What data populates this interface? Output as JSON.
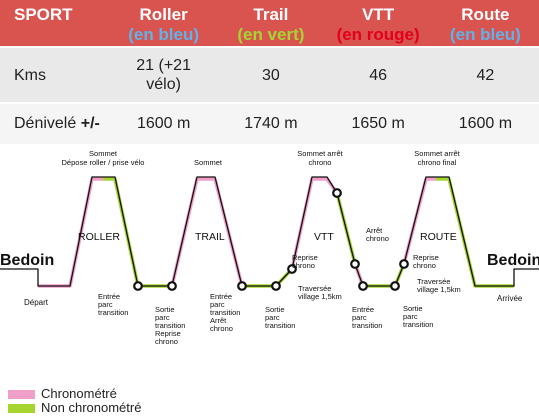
{
  "colors": {
    "header_bg": "#d9534f",
    "blue": "#5fb3e8",
    "green": "#a6d531",
    "red": "#e3001b",
    "chrono": "#f0a0c8",
    "non_chrono": "#a6d531"
  },
  "table": {
    "headers": [
      {
        "label": "SPORT",
        "sub": ""
      },
      {
        "label": "Roller",
        "sub": "(en bleu)",
        "sub_color": "#5fb3e8"
      },
      {
        "label": "Trail",
        "sub": "(en vert)",
        "sub_color": "#a6d531"
      },
      {
        "label": "VTT",
        "sub": "(en rouge)",
        "sub_color": "#e3001b"
      },
      {
        "label": "Route",
        "sub": "(en bleu)",
        "sub_color": "#5fb3e8"
      }
    ],
    "rows": [
      {
        "label": "Kms",
        "values": [
          "21 (+21 vélo)",
          "30",
          "46",
          "42"
        ]
      },
      {
        "label": "Dénivelé",
        "label_bold": "+/-",
        "values": [
          "1600 m",
          "1740 m",
          "1650 m",
          "1600 m"
        ]
      }
    ]
  },
  "diagram": {
    "start_town": "Bedoin",
    "end_town": "Bedoin",
    "depart": "Départ",
    "arrivee": "Arrivée",
    "segments": {
      "roller": "ROLLER",
      "trail": "TRAIL",
      "vtt": "VTT",
      "route": "ROUTE"
    },
    "labels": {
      "sommet_roller": [
        "Sommet",
        "Dépose roller / prise vélo"
      ],
      "sommet_trail": [
        "Sommet"
      ],
      "sommet_vtt": [
        "Sommet arrêt",
        "chrono"
      ],
      "sommet_route": [
        "Sommet arrêt",
        "chrono final"
      ],
      "entree_roller": [
        "Entrée",
        "parc",
        "transition"
      ],
      "sortie_roller": [
        "Sortie",
        "parc",
        "transition",
        "Reprise",
        "chrono"
      ],
      "entree_trail": [
        "Entrée",
        "parc",
        "transition",
        "Arrêt",
        "chrono"
      ],
      "sortie_trail": [
        "Sortie",
        "parc",
        "transition"
      ],
      "reprise_vtt": [
        "Reprise",
        "chrono"
      ],
      "traversee_1": [
        "Traversée",
        "village 1,5km"
      ],
      "arret_vtt": [
        "Arrêt",
        "chrono"
      ],
      "entree_vtt": [
        "Entrée",
        "parc",
        "transition"
      ],
      "reprise_route": [
        "Reprise",
        "chrono"
      ],
      "traversee_2": [
        "Traversée",
        "village 1,5km"
      ],
      "sortie_vtt": [
        "Sortie",
        "parc",
        "transition"
      ]
    }
  },
  "legend": {
    "chrono": "Chronométré",
    "non_chrono": "Non chronométré"
  }
}
